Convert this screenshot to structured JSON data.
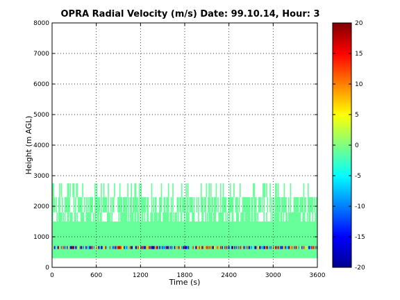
{
  "chart_data": {
    "type": "heatmap",
    "title": "OPRA Radial Velocity (m/s)  Date: 99.10.14, Hour: 3",
    "xlabel": "Time (s)",
    "ylabel": "Height (m AGL)",
    "xlim": [
      0,
      3600
    ],
    "ylim": [
      0,
      8000
    ],
    "x_ticks": [
      "0",
      "600",
      "1200",
      "1800",
      "2400",
      "3000",
      "3600"
    ],
    "y_ticks": [
      "0",
      "1000",
      "2000",
      "3000",
      "4000",
      "5000",
      "6000",
      "7000",
      "8000"
    ],
    "grid": true,
    "colorbar": {
      "range": [
        -20,
        20
      ],
      "ticks": [
        "20",
        "15",
        "10",
        "5",
        "0",
        "-5",
        "-10",
        "-15",
        "-20"
      ],
      "colormap": "jet"
    },
    "layers": [
      {
        "height_range": [
          300,
          600
        ],
        "velocity": -1,
        "coverage": "continuous"
      },
      {
        "height_range": [
          600,
          700
        ],
        "velocity": "mixed -20 to 20",
        "coverage": "continuous"
      },
      {
        "height_range": [
          700,
          1500
        ],
        "velocity": -1,
        "coverage": "continuous"
      },
      {
        "height_range": [
          1500,
          1800
        ],
        "velocity": -1,
        "coverage": "intermittent"
      },
      {
        "height_range": [
          1800,
          2300
        ],
        "velocity": -1,
        "coverage": "intermittent"
      },
      {
        "height_range": [
          2300,
          2750
        ],
        "velocity": -1,
        "coverage": "sparse"
      }
    ]
  }
}
